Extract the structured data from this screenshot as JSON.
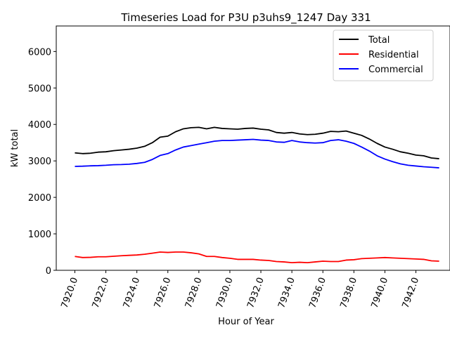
{
  "chart_data": {
    "type": "line",
    "title": "Timeseries Load for P3U p3uhs9_1247  Day 331",
    "xlabel": "Hour of Year",
    "ylabel": "kW total",
    "xlim": [
      7918.8,
      7944.2
    ],
    "ylim": [
      0,
      6700
    ],
    "x_ticks": [
      7920,
      7922,
      7924,
      7926,
      7928,
      7930,
      7932,
      7934,
      7936,
      7938,
      7940,
      7942
    ],
    "x_tick_labels": [
      "7920.0",
      "7922.0",
      "7924.0",
      "7926.0",
      "7928.0",
      "7930.0",
      "7932.0",
      "7934.0",
      "7936.0",
      "7938.0",
      "7940.0",
      "7942.0"
    ],
    "y_ticks": [
      0,
      1000,
      2000,
      3000,
      4000,
      5000,
      6000
    ],
    "y_tick_labels": [
      "0",
      "1000",
      "2000",
      "3000",
      "4000",
      "5000",
      "6000"
    ],
    "grid": false,
    "legend_position": "upper right",
    "x": [
      7920.0,
      7920.5,
      7921.0,
      7921.5,
      7922.0,
      7922.5,
      7923.0,
      7923.5,
      7924.0,
      7924.5,
      7925.0,
      7925.5,
      7926.0,
      7926.5,
      7927.0,
      7927.5,
      7928.0,
      7928.5,
      7929.0,
      7929.5,
      7930.0,
      7930.5,
      7931.0,
      7931.5,
      7932.0,
      7932.5,
      7933.0,
      7933.5,
      7934.0,
      7934.5,
      7935.0,
      7935.5,
      7936.0,
      7936.5,
      7937.0,
      7937.5,
      7938.0,
      7938.5,
      7939.0,
      7939.5,
      7940.0,
      7940.5,
      7941.0,
      7941.5,
      7942.0,
      7942.5,
      7943.0,
      7943.5
    ],
    "series": [
      {
        "name": "Total",
        "color": "#000000",
        "values": [
          3220,
          3200,
          3210,
          3240,
          3250,
          3280,
          3300,
          3320,
          3350,
          3400,
          3500,
          3650,
          3680,
          3800,
          3880,
          3910,
          3920,
          3880,
          3920,
          3890,
          3880,
          3870,
          3890,
          3900,
          3870,
          3850,
          3780,
          3760,
          3780,
          3740,
          3720,
          3730,
          3760,
          3810,
          3800,
          3820,
          3760,
          3700,
          3600,
          3480,
          3380,
          3320,
          3250,
          3210,
          3160,
          3140,
          3080,
          3060
        ]
      },
      {
        "name": "Residential",
        "color": "#ff0000",
        "values": [
          380,
          350,
          355,
          370,
          370,
          385,
          400,
          410,
          420,
          440,
          470,
          500,
          490,
          500,
          500,
          480,
          450,
          380,
          380,
          350,
          330,
          300,
          300,
          300,
          280,
          270,
          240,
          230,
          210,
          220,
          210,
          230,
          250,
          240,
          240,
          280,
          290,
          320,
          330,
          340,
          350,
          340,
          330,
          320,
          310,
          300,
          260,
          250
        ]
      },
      {
        "name": "Commercial",
        "color": "#0000ff",
        "values": [
          2850,
          2855,
          2865,
          2870,
          2880,
          2895,
          2900,
          2910,
          2930,
          2960,
          3040,
          3150,
          3200,
          3300,
          3380,
          3420,
          3460,
          3500,
          3540,
          3560,
          3560,
          3570,
          3580,
          3590,
          3570,
          3560,
          3520,
          3510,
          3560,
          3520,
          3500,
          3490,
          3500,
          3560,
          3580,
          3540,
          3480,
          3380,
          3270,
          3140,
          3050,
          2980,
          2920,
          2880,
          2860,
          2840,
          2825,
          2810
        ]
      }
    ]
  }
}
